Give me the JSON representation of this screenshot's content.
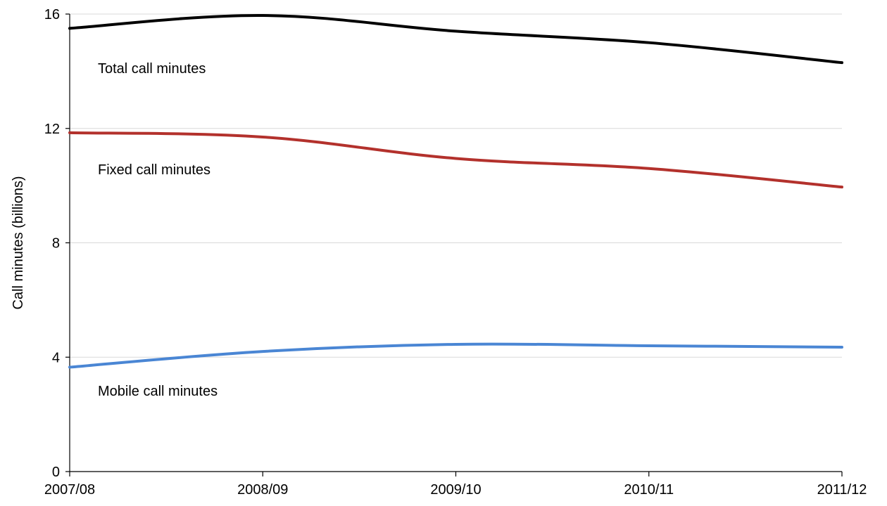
{
  "chart_data": {
    "type": "line",
    "title": "",
    "xlabel": "",
    "ylabel": "Call minutes (billions)",
    "categories": [
      "2007/08",
      "2008/09",
      "2009/10",
      "2010/11",
      "2011/12"
    ],
    "ylim": [
      0,
      16
    ],
    "yticks": [
      0,
      4,
      8,
      12,
      16
    ],
    "grid": true,
    "legend": "none",
    "series": [
      {
        "name": "Total call minutes",
        "values": [
          15.5,
          15.95,
          15.4,
          15.0,
          14.3
        ],
        "color": "#000000"
      },
      {
        "name": "Fixed call minutes",
        "values": [
          11.85,
          11.7,
          10.95,
          10.6,
          9.95
        ],
        "color": "#b3312c"
      },
      {
        "name": "Mobile call minutes",
        "values": [
          3.65,
          4.2,
          4.45,
          4.4,
          4.35
        ],
        "color": "#4a86d4"
      }
    ]
  }
}
